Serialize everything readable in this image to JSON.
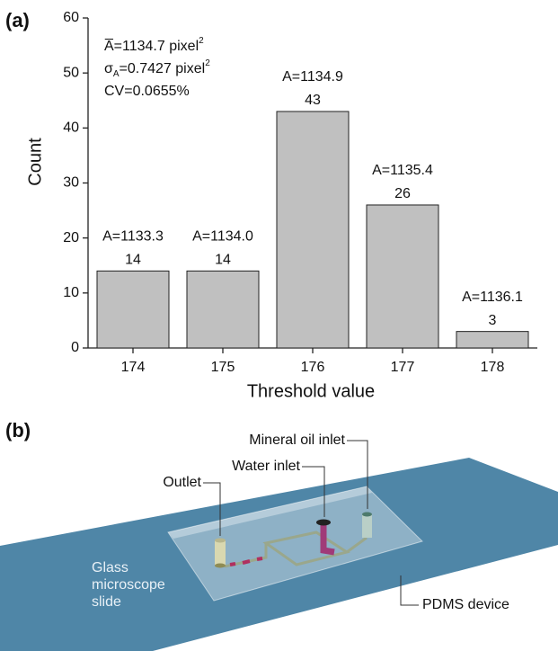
{
  "panel_labels": [
    "(a)",
    "(b)"
  ],
  "chart_data": {
    "type": "bar",
    "categories": [
      "174",
      "175",
      "176",
      "177",
      "178"
    ],
    "values": [
      14,
      14,
      43,
      26,
      3
    ],
    "bar_annotations": [
      "A=1133.3",
      "A=1134.0",
      "A=1134.9",
      "A=1135.4",
      "A=1136.1"
    ],
    "color": "#c0c0c0",
    "xlabel": "Threshold value",
    "ylabel": "Count",
    "ylim": [
      0,
      60
    ],
    "yticks": [
      0,
      10,
      20,
      30,
      40,
      50,
      60
    ],
    "stats": [
      {
        "text": "A̅=1134.7 pixel",
        "sup": "2"
      },
      {
        "symbol": "σ",
        "sub": "A",
        "text": "=0.7427 pixel",
        "sup": "2"
      },
      {
        "text": "CV=0.0655%"
      }
    ]
  },
  "diagram": {
    "callouts": [
      "Mineral oil inlet",
      "Water inlet",
      "Outlet",
      "PDMS device"
    ],
    "slide_label": [
      "Glass",
      "microscope",
      "slide"
    ]
  }
}
